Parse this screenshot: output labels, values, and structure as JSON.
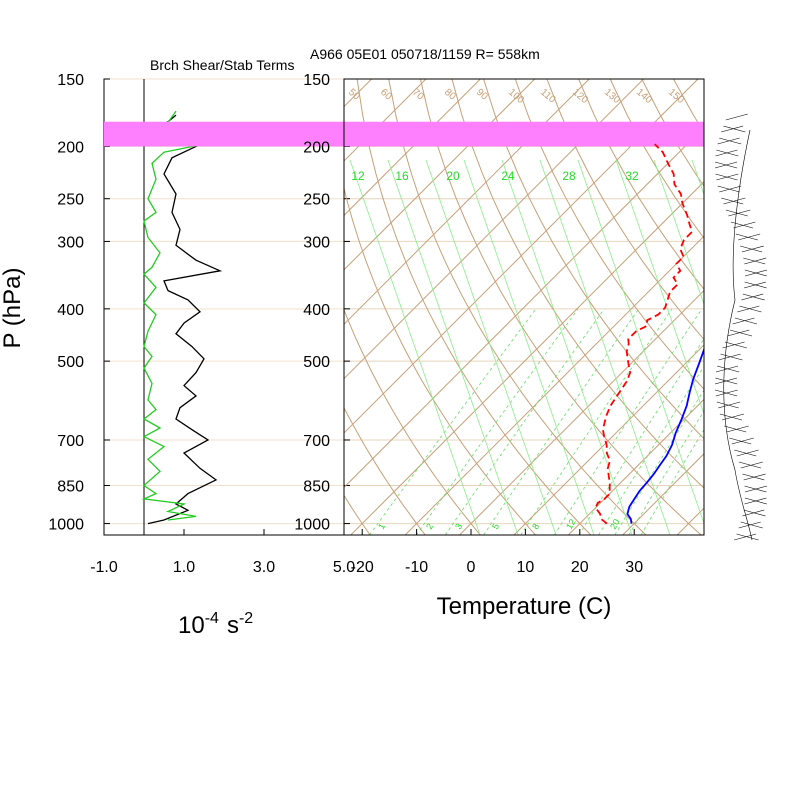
{
  "header": {
    "left_title": "Brch Shear/Stab Terms",
    "right_title": "A966 05E01 050718/1159 R= 558km"
  },
  "chart_data": [
    {
      "type": "line",
      "title": "Brch Shear/Stab Terms",
      "xlabel": "10",
      "xlabel_exp": "-4",
      "xlabel_unit": "s",
      "xlabel_unit_exp": "-2",
      "ylabel": "P (hPa)",
      "ylim": [
        1050,
        150
      ],
      "y_scale": "log",
      "xlim": [
        -1.0,
        5.0
      ],
      "xticks": [
        "-1.0",
        "1.0",
        "3.0",
        "5.0"
      ],
      "yticks": [
        "150",
        "200",
        "250",
        "300",
        "400",
        "500",
        "700",
        "850",
        "1000"
      ],
      "series": [
        {
          "name": "",
          "color": "#000000",
          "points": [
            [
              0.8,
              175
            ],
            [
              0.6,
              180
            ],
            [
              0.3,
              185
            ],
            [
              0.0,
              190
            ],
            [
              0.5,
              195
            ],
            [
              1.3,
              200
            ],
            [
              0.7,
              210
            ],
            [
              0.5,
              225
            ],
            [
              0.8,
              245
            ],
            [
              0.7,
              265
            ],
            [
              0.9,
              285
            ],
            [
              0.8,
              305
            ],
            [
              1.3,
              325
            ],
            [
              1.9,
              340
            ],
            [
              0.5,
              355
            ],
            [
              0.6,
              370
            ],
            [
              1.1,
              385
            ],
            [
              1.4,
              405
            ],
            [
              1.0,
              425
            ],
            [
              0.8,
              445
            ],
            [
              1.2,
              470
            ],
            [
              1.5,
              495
            ],
            [
              1.3,
              525
            ],
            [
              1.0,
              555
            ],
            [
              1.3,
              580
            ],
            [
              0.9,
              610
            ],
            [
              0.8,
              640
            ],
            [
              1.2,
              670
            ],
            [
              1.6,
              700
            ],
            [
              1.0,
              740
            ],
            [
              1.4,
              790
            ],
            [
              1.8,
              830
            ],
            [
              1.1,
              880
            ],
            [
              0.8,
              920
            ],
            [
              1.1,
              945
            ],
            [
              0.5,
              985
            ],
            [
              0.1,
              1000
            ]
          ]
        },
        {
          "name": "",
          "color": "#22cc22",
          "points": [
            [
              0.8,
              172
            ],
            [
              0.5,
              185
            ],
            [
              1.0,
              192
            ],
            [
              1.5,
              198
            ],
            [
              0.5,
              205
            ],
            [
              0.2,
              215
            ],
            [
              0.3,
              230
            ],
            [
              0.1,
              250
            ],
            [
              0.3,
              265
            ],
            [
              0.0,
              275
            ],
            [
              0.1,
              295
            ],
            [
              0.4,
              315
            ],
            [
              0.2,
              335
            ],
            [
              0.0,
              345
            ],
            [
              0.3,
              365
            ],
            [
              0.0,
              390
            ],
            [
              0.3,
              410
            ],
            [
              0.1,
              440
            ],
            [
              0.0,
              470
            ],
            [
              0.2,
              490
            ],
            [
              0.0,
              515
            ],
            [
              0.2,
              550
            ],
            [
              0.1,
              590
            ],
            [
              0.3,
              615
            ],
            [
              0.0,
              640
            ],
            [
              0.4,
              665
            ],
            [
              0.0,
              690
            ],
            [
              0.5,
              720
            ],
            [
              0.1,
              760
            ],
            [
              0.4,
              800
            ],
            [
              0.0,
              850
            ],
            [
              0.3,
              880
            ],
            [
              0.0,
              900
            ],
            [
              1.0,
              920
            ],
            [
              0.6,
              950
            ],
            [
              1.3,
              970
            ],
            [
              0.6,
              985
            ]
          ]
        }
      ],
      "highlight": {
        "color": "#ff80ff",
        "p_top": 180,
        "p_bottom": 200
      },
      "grid": true
    },
    {
      "type": "line",
      "subtype": "skew-T log-p",
      "xlabel": "Temperature (C)",
      "xlim": [
        -25,
        45
      ],
      "ylim": [
        1050,
        150
      ],
      "y_scale": "log",
      "xticks": [
        "-20",
        "-10",
        "0",
        "10",
        "20",
        "30"
      ],
      "yticks": [
        "150",
        "200",
        "250",
        "300",
        "400",
        "500",
        "700",
        "850",
        "1000"
      ],
      "mixing_ratio_labels_top": [
        "12",
        "16",
        "20",
        "24",
        "28",
        "32"
      ],
      "mixing_ratio_labels_bottom": [
        "1",
        "2",
        "3",
        "5",
        "8",
        "12",
        "20"
      ],
      "dry_adiabat_labels": [
        "50",
        "60",
        "70",
        "80",
        "90",
        "100",
        "110",
        "120",
        "130",
        "140",
        "150"
      ],
      "series": [
        {
          "name": "",
          "color": "#0000ff",
          "style": "solid",
          "points": [
            [
              29.5,
              1000
            ],
            [
              28.5,
              980
            ],
            [
              27,
              960
            ],
            [
              26,
              930
            ],
            [
              25.5,
              900
            ],
            [
              25,
              870
            ],
            [
              24.8,
              840
            ],
            [
              24.5,
              810
            ],
            [
              24,
              780
            ],
            [
              23.5,
              750
            ],
            [
              22.5,
              715
            ],
            [
              21,
              680
            ],
            [
              19.5,
              640
            ],
            [
              18,
              605
            ],
            [
              16,
              570
            ],
            [
              14.3,
              540
            ],
            [
              12.5,
              505
            ],
            [
              10.5,
              470
            ],
            [
              9,
              440
            ],
            [
              7.3,
              410
            ],
            [
              5.5,
              385
            ],
            [
              3.7,
              365
            ],
            [
              2.5,
              345
            ],
            [
              1,
              325
            ],
            [
              -1,
              305
            ],
            [
              -3,
              290
            ],
            [
              -5,
              275
            ],
            [
              -8,
              255
            ],
            [
              -12,
              235
            ],
            [
              -15,
              220
            ],
            [
              -18,
              205
            ],
            [
              -21,
              190
            ],
            [
              -24,
              180
            ],
            [
              -28,
              170
            ]
          ]
        },
        {
          "name": "",
          "color": "#ff0000",
          "style": "dashed",
          "points": [
            [
              25,
              1000
            ],
            [
              23,
              980
            ],
            [
              22,
              960
            ],
            [
              20,
              935
            ],
            [
              19.5,
              915
            ],
            [
              20,
              900
            ],
            [
              20,
              880
            ],
            [
              19,
              860
            ],
            [
              18,
              840
            ],
            [
              16.5,
              815
            ],
            [
              15,
              790
            ],
            [
              14,
              765
            ],
            [
              12,
              740
            ],
            [
              10.5,
              715
            ],
            [
              8.5,
              690
            ],
            [
              7,
              670
            ],
            [
              6,
              650
            ],
            [
              5,
              630
            ],
            [
              4,
              605
            ],
            [
              3.5,
              585
            ],
            [
              3,
              565
            ],
            [
              2.5,
              545
            ],
            [
              1.5,
              525
            ],
            [
              -0.5,
              505
            ],
            [
              -3,
              480
            ],
            [
              -4,
              465
            ],
            [
              -5,
              455
            ],
            [
              -5,
              440
            ],
            [
              -4,
              430
            ],
            [
              -5,
              420
            ],
            [
              -4,
              410
            ],
            [
              -4,
              398
            ],
            [
              -5,
              385
            ],
            [
              -6,
              372
            ],
            [
              -6,
              360
            ],
            [
              -8,
              350
            ],
            [
              -8,
              340
            ],
            [
              -10,
              330
            ],
            [
              -10,
              320
            ],
            [
              -12,
              310
            ],
            [
              -13,
              298
            ],
            [
              -13,
              288
            ],
            [
              -15,
              278
            ],
            [
              -17,
              268
            ],
            [
              -20,
              255
            ],
            [
              -22,
              245
            ],
            [
              -25,
              235
            ],
            [
              -27,
              225
            ],
            [
              -30,
              215
            ],
            [
              -33,
              205
            ],
            [
              -36,
              198
            ]
          ]
        }
      ],
      "grid": true
    }
  ],
  "wind_profile": {
    "ylim": [
      1050,
      150
    ],
    "color": "#000000"
  }
}
